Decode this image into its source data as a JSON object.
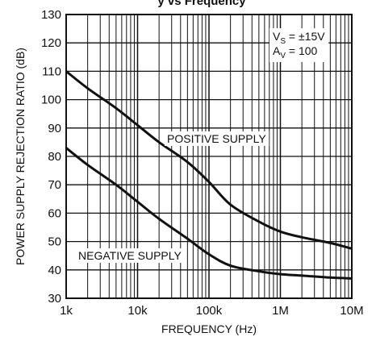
{
  "chart_data": {
    "type": "line",
    "title": "y vs Frequency",
    "xlabel": "FREQUENCY (Hz)",
    "ylabel": "POWER SUPPLY REJECTION RATIO (dB)",
    "x_scale": "log",
    "xlim": [
      1000,
      10000000
    ],
    "ylim": [
      30,
      130
    ],
    "x_ticks": [
      1000,
      10000,
      100000,
      1000000,
      10000000
    ],
    "x_tick_labels": [
      "1k",
      "10k",
      "100k",
      "1M",
      "10M"
    ],
    "y_ticks": [
      30,
      40,
      50,
      60,
      70,
      80,
      90,
      100,
      110,
      120,
      130
    ],
    "y_tick_labels": [
      "30",
      "40",
      "50",
      "60",
      "70",
      "80",
      "90",
      "100",
      "110",
      "120",
      "130"
    ],
    "grid": true,
    "conditions": {
      "line1_main": "V",
      "line1_sub": "S",
      "line1_rest": " = ±15V",
      "line2_main": "A",
      "line2_sub": "V",
      "line2_rest": " = 100"
    },
    "series": [
      {
        "name": "POSITIVE SUPPLY",
        "x": [
          1000,
          2000,
          5000,
          10000,
          20000,
          50000,
          100000,
          200000,
          500000,
          1000000,
          2000000,
          5000000,
          10000000
        ],
        "y": [
          110,
          104,
          97,
          91,
          85,
          78,
          71,
          63,
          57,
          53.5,
          51.5,
          49.5,
          47.5
        ]
      },
      {
        "name": "NEGATIVE SUPPLY",
        "x": [
          1000,
          2000,
          5000,
          10000,
          20000,
          50000,
          100000,
          200000,
          500000,
          1000000,
          2000000,
          5000000,
          10000000
        ],
        "y": [
          83,
          77,
          70,
          64,
          58,
          51,
          45.5,
          41.5,
          39.5,
          38.5,
          38,
          37.3,
          37
        ]
      }
    ],
    "color": "#111111"
  }
}
